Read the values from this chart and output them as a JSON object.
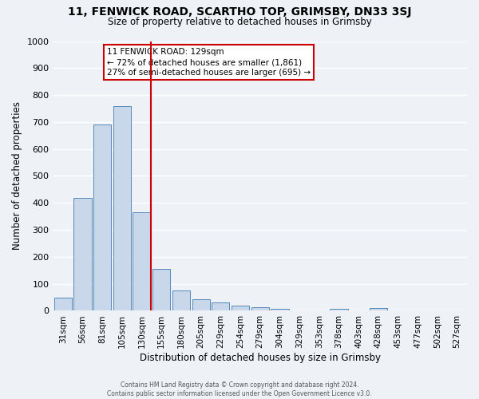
{
  "title_line1": "11, FENWICK ROAD, SCARTHO TOP, GRIMSBY, DN33 3SJ",
  "title_line2": "Size of property relative to detached houses in Grimsby",
  "xlabel": "Distribution of detached houses by size in Grimsby",
  "ylabel": "Number of detached properties",
  "bar_labels": [
    "31sqm",
    "56sqm",
    "81sqm",
    "105sqm",
    "130sqm",
    "155sqm",
    "180sqm",
    "205sqm",
    "229sqm",
    "254sqm",
    "279sqm",
    "304sqm",
    "329sqm",
    "353sqm",
    "378sqm",
    "403sqm",
    "428sqm",
    "453sqm",
    "477sqm",
    "502sqm",
    "527sqm"
  ],
  "bar_values": [
    50,
    420,
    690,
    760,
    365,
    155,
    75,
    42,
    30,
    18,
    12,
    8,
    0,
    0,
    8,
    0,
    10,
    0,
    0,
    0,
    0
  ],
  "bar_color": "#c8d8ea",
  "bar_edge_color": "#5588bb",
  "vline_color": "#cc0000",
  "vline_index": 4,
  "annotation_title": "11 FENWICK ROAD: 129sqm",
  "annotation_line2": "← 72% of detached houses are smaller (1,861)",
  "annotation_line3": "27% of semi-detached houses are larger (695) →",
  "annotation_box_color": "#ffffff",
  "annotation_box_edge_color": "#cc0000",
  "ylim": [
    0,
    1000
  ],
  "yticks": [
    0,
    100,
    200,
    300,
    400,
    500,
    600,
    700,
    800,
    900,
    1000
  ],
  "footer_line1": "Contains HM Land Registry data © Crown copyright and database right 2024.",
  "footer_line2": "Contains public sector information licensed under the Open Government Licence v3.0.",
  "background_color": "#eef2f7",
  "grid_color": "#ffffff"
}
